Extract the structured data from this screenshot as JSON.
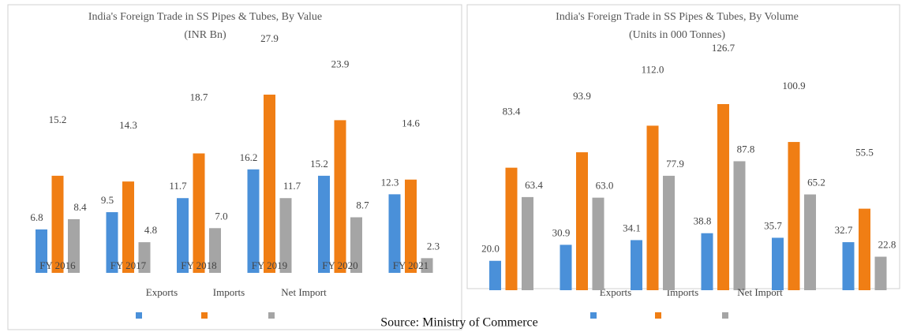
{
  "chart_data": [
    {
      "type": "bar",
      "title": "India's Foreign Trade in SS Pipes & Tubes, By Value",
      "subtitle": "(INR Bn)",
      "categories": [
        "FY 2016",
        "FY 2017",
        "FY 2018",
        "FY 2019",
        "FY 2020",
        "FY 2021"
      ],
      "series": [
        {
          "name": "Exports",
          "color": "#4a90d9",
          "values": [
            6.8,
            9.5,
            11.7,
            16.2,
            15.2,
            12.3
          ],
          "value_labels": [
            "6.8",
            "9.5",
            "11.7",
            "16.2",
            "15.2",
            "12.3"
          ]
        },
        {
          "name": "Imports",
          "color": "#f07e14",
          "values": [
            15.2,
            14.3,
            18.7,
            27.9,
            23.9,
            14.6
          ],
          "value_labels": [
            "15.2",
            "14.3",
            "18.7",
            "27.9",
            "23.9",
            "14.6"
          ]
        },
        {
          "name": "Net Import",
          "color": "#a5a5a5",
          "values": [
            8.4,
            4.8,
            7,
            11.7,
            8.7,
            2.3
          ],
          "value_labels": [
            "8.4",
            "4.8",
            "7.0",
            "11.7",
            "8.7",
            "2.3"
          ]
        }
      ]
    },
    {
      "type": "bar",
      "title": "India's Foreign Trade in SS Pipes & Tubes, By Volume",
      "subtitle": "(Units in 000 Tonnes)",
      "series": [
        {
          "name": "Exports",
          "color": "#4a90d9",
          "values": [
            20,
            30.9,
            34.1,
            38.8,
            35.7,
            32.7
          ],
          "value_labels": [
            "20.0",
            "30.9",
            "34.1",
            "38.8",
            "35.7",
            "32.7"
          ]
        },
        {
          "name": "Imports",
          "color": "#f07e14",
          "values": [
            83.4,
            93.9,
            112,
            126.7,
            100.9,
            55.5
          ],
          "value_labels": [
            "83.4",
            "93.9",
            "112.0",
            "126.7",
            "100.9",
            "55.5"
          ]
        },
        {
          "name": "Net Import",
          "color": "#a5a5a5",
          "values": [
            63.4,
            63,
            77.9,
            87.8,
            65.2,
            22.8
          ],
          "value_labels": [
            "63.4",
            "63.0",
            "77.9",
            "87.8",
            "65.2",
            "22.8"
          ]
        }
      ]
    }
  ],
  "source": "Source: Ministry of Commerce"
}
